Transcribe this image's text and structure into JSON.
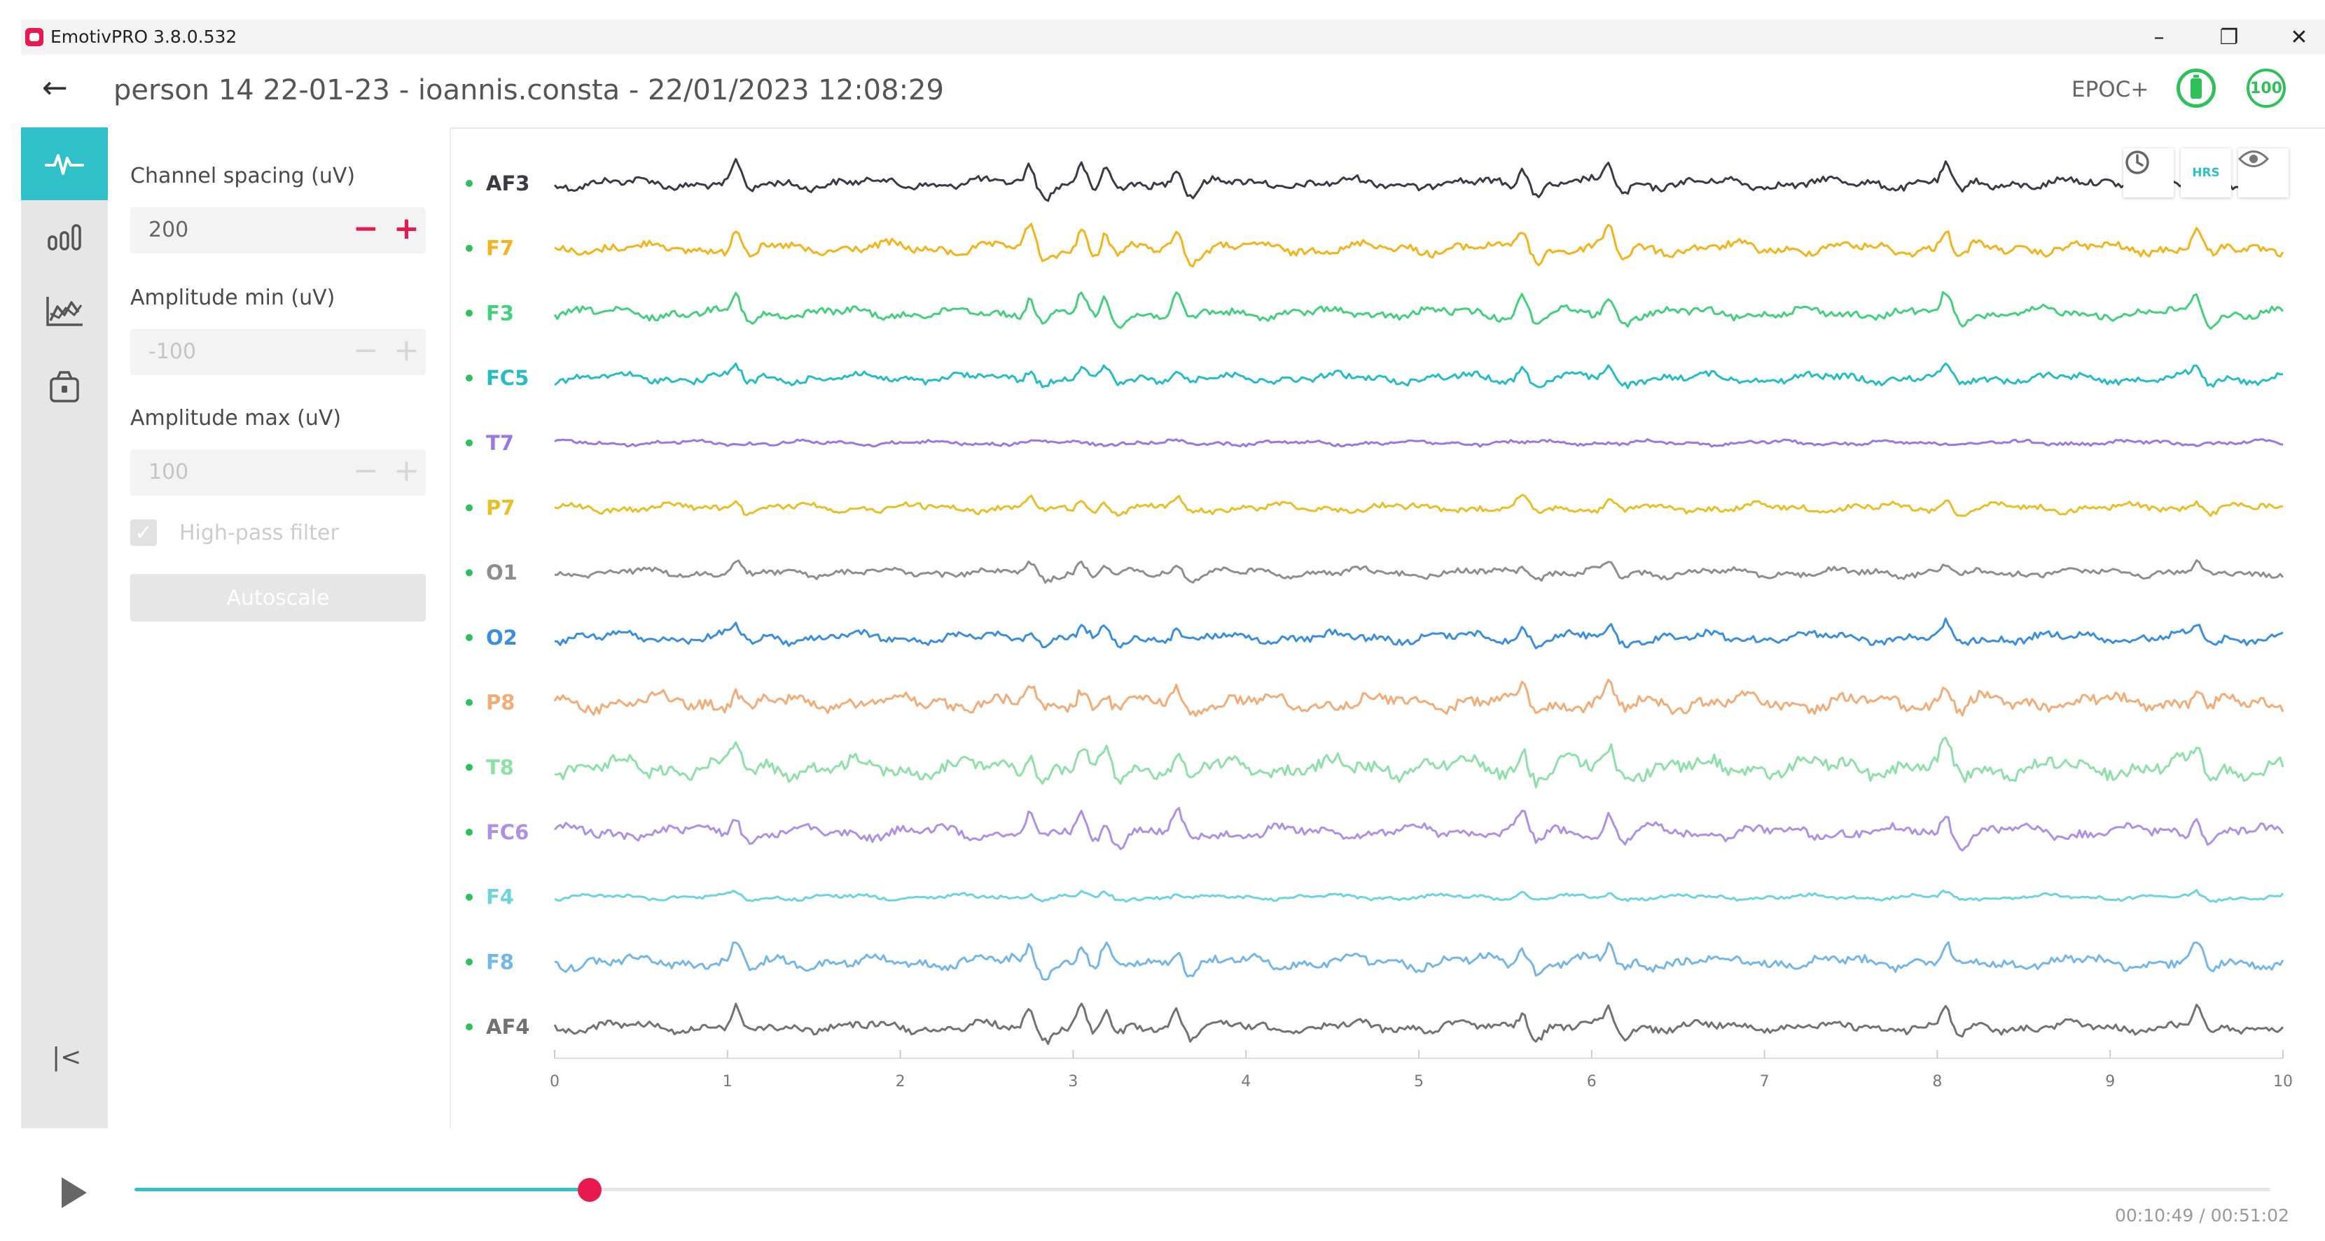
{
  "window": {
    "app_title": "EmotivPRO 3.8.0.532",
    "minimize_glyph": "–",
    "maximize_glyph": "❐",
    "close_glyph": "✕"
  },
  "header": {
    "back_glyph": "←",
    "session_title": "person 14 22-01-23 - ioannis.consta - 22/01/2023 12:08:29",
    "device": "EPOC+",
    "battery_icon": "battery-icon",
    "signal_quality": "100",
    "status_color": "#2ec05b"
  },
  "sidebar": {
    "items": [
      {
        "icon": "raw-eeg-waveform-icon",
        "active": true
      },
      {
        "icon": "band-power-bars-icon",
        "active": false
      },
      {
        "icon": "performance-metrics-chart-icon",
        "active": false
      },
      {
        "icon": "motion-sensor-icon",
        "active": false
      }
    ],
    "collapse_glyph": "|<",
    "accent_color": "#2fc0c9"
  },
  "settings": {
    "channel_spacing_label": "Channel spacing (uV)",
    "channel_spacing_value": "200",
    "amp_min_label": "Amplitude min (uV)",
    "amp_min_value": "-100",
    "amp_max_label": "Amplitude max (uV)",
    "amp_max_value": "100",
    "minus_glyph": "−",
    "plus_glyph": "+",
    "highpass_label": "High-pass filter",
    "highpass_checked": true,
    "autoscale_label": "Autoscale",
    "stepper_color": "#e8194f"
  },
  "plot_tools": {
    "hrs_label": "HRS",
    "history_icon": "clock-icon",
    "visibility_icon": "eye-icon"
  },
  "chart_data": {
    "type": "line",
    "xlim": [
      0,
      10
    ],
    "x_ticks": [
      "0",
      "1",
      "2",
      "3",
      "4",
      "5",
      "6",
      "7",
      "8",
      "9",
      "10"
    ],
    "channel_spacing_uv": 200,
    "series": [
      {
        "name": "AF3",
        "color": "#3a3a46",
        "amp": 1.0,
        "events": 1.0
      },
      {
        "name": "F7",
        "color": "#f2b31c",
        "amp": 1.1,
        "events": 1.1
      },
      {
        "name": "F3",
        "color": "#44cf7e",
        "amp": 1.0,
        "events": 1.0
      },
      {
        "name": "FC5",
        "color": "#25bcc4",
        "amp": 0.9,
        "events": 0.6
      },
      {
        "name": "T7",
        "color": "#9a78e4",
        "amp": 0.45,
        "events": 0.0
      },
      {
        "name": "P7",
        "color": "#e8bf28",
        "amp": 0.8,
        "events": 0.5
      },
      {
        "name": "O1",
        "color": "#8e8e8e",
        "amp": 0.8,
        "events": 0.5
      },
      {
        "name": "O2",
        "color": "#3b8edc",
        "amp": 1.0,
        "events": 0.6
      },
      {
        "name": "P8",
        "color": "#f2ac78",
        "amp": 1.5,
        "events": 0.8
      },
      {
        "name": "T8",
        "color": "#8ee0a8",
        "amp": 1.8,
        "events": 1.0
      },
      {
        "name": "FC6",
        "color": "#ae90e6",
        "amp": 1.2,
        "events": 1.0
      },
      {
        "name": "F4",
        "color": "#6dd4dc",
        "amp": 0.5,
        "events": 0.25
      },
      {
        "name": "F8",
        "color": "#74b6e8",
        "amp": 1.2,
        "events": 0.9
      },
      {
        "name": "AF4",
        "color": "#727272",
        "amp": 1.0,
        "events": 1.0
      }
    ]
  },
  "player": {
    "play_icon": "play-icon",
    "progress": 0.213,
    "time_readout": "00:10:49 / 00:51:02",
    "fill_color": "#2fc0c9",
    "thumb_color": "#e8194f"
  }
}
